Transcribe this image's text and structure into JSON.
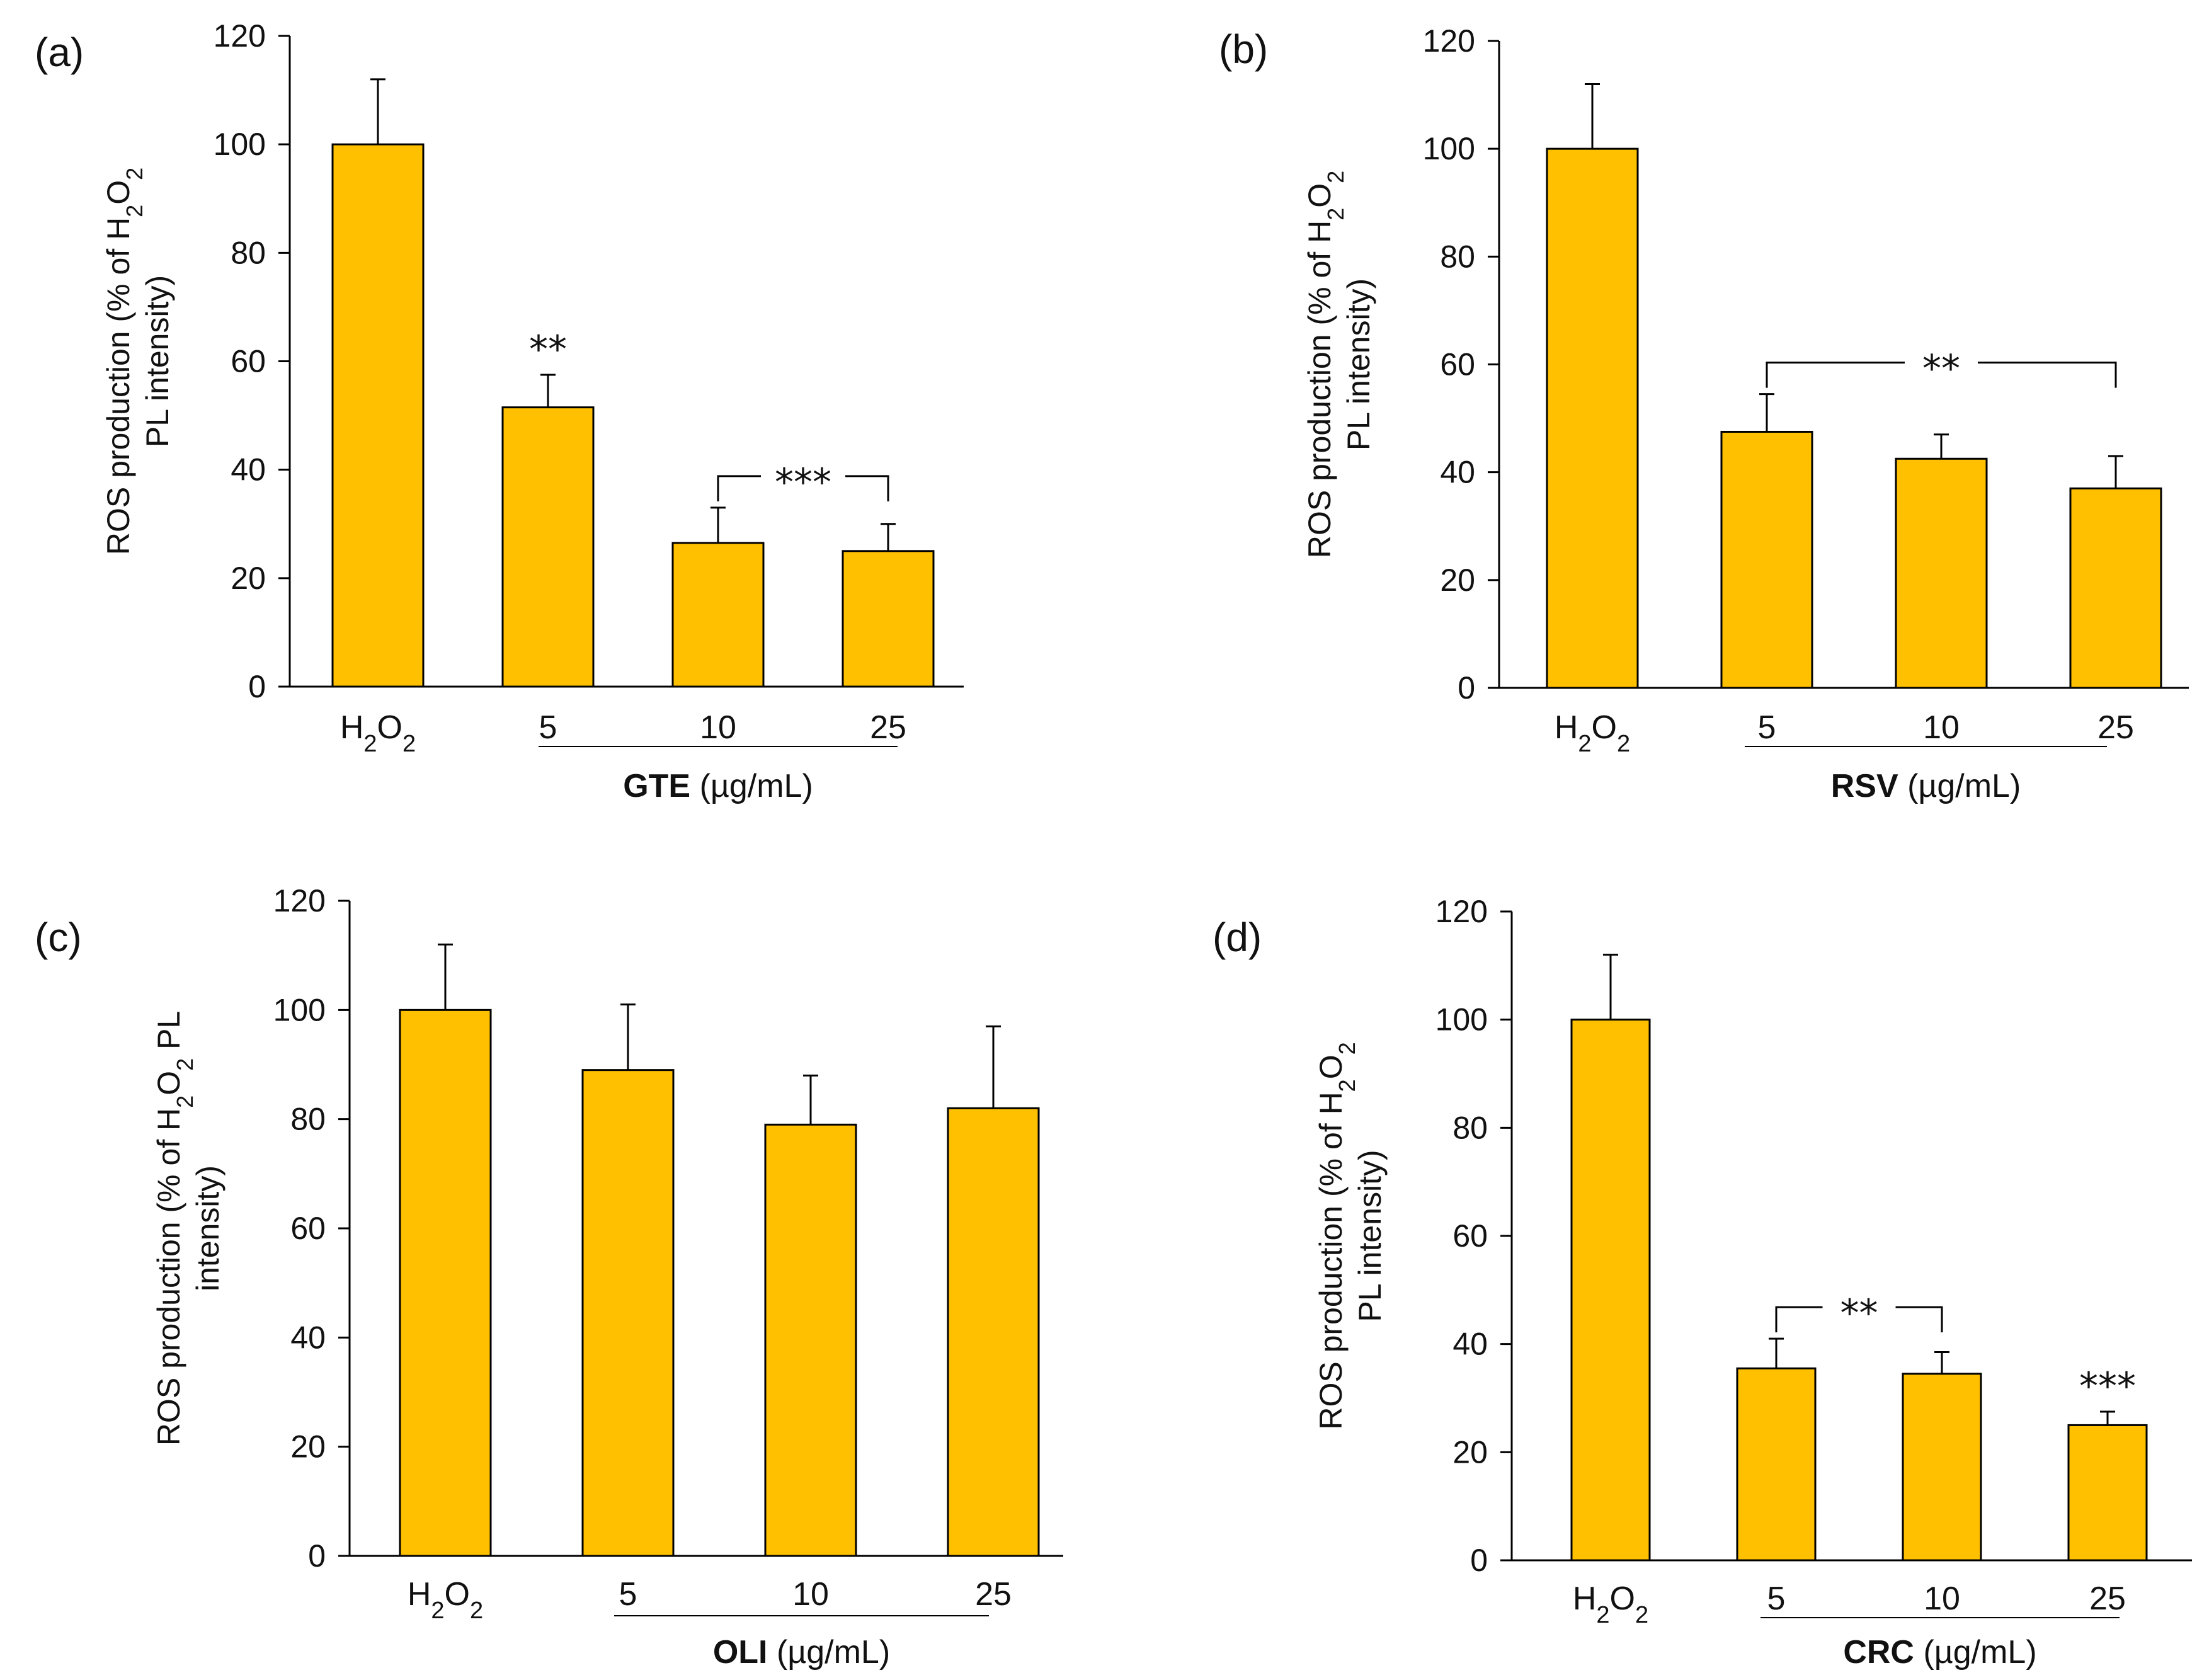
{
  "chart_data": [
    {
      "type": "bar",
      "panel_label": "(a)",
      "title": "",
      "ylabel_line1_pre": "ROS production (% of H",
      "ylabel_line1_sub1": "2",
      "ylabel_line1_mid": "O",
      "ylabel_line1_sub2": "2",
      "ylabel_line2": "PL intensity)",
      "ylim": [
        0,
        120
      ],
      "yticks": [
        "0",
        "20",
        "40",
        "60",
        "80",
        "100",
        "120"
      ],
      "categories": [
        "H2O2",
        "5",
        "10",
        "25"
      ],
      "values": [
        100,
        51.5,
        26.5,
        25
      ],
      "errors": [
        12,
        6,
        6.5,
        5
      ],
      "group_label_bold": "GTE",
      "group_label_unit": " (µg/mL)",
      "annotations": [
        {
          "type": "star",
          "text": "**",
          "bar": 1
        },
        {
          "type": "bracket",
          "text": "***",
          "from": 2,
          "to": 3
        }
      ]
    },
    {
      "type": "bar",
      "panel_label": "(b)",
      "title": "",
      "ylabel_line1_pre": "ROS production (% of H",
      "ylabel_line1_sub1": "2",
      "ylabel_line1_mid": "O",
      "ylabel_line1_sub2": "2",
      "ylabel_line2": "PL intensity)",
      "ylim": [
        0,
        120
      ],
      "yticks": [
        "0",
        "20",
        "40",
        "60",
        "80",
        "100",
        "120"
      ],
      "categories": [
        "H2O2",
        "5",
        "10",
        "25"
      ],
      "values": [
        100,
        47.5,
        42.5,
        37
      ],
      "errors": [
        12,
        7,
        4.5,
        6
      ],
      "group_label_bold": "RSV",
      "group_label_unit": " (µg/mL)",
      "annotations": [
        {
          "type": "bracket",
          "text": "**",
          "from": 1,
          "to": 3
        }
      ]
    },
    {
      "type": "bar",
      "panel_label": "(c)",
      "title": "",
      "ylabel_line1_pre": "ROS production (% of H",
      "ylabel_line1_sub1": "2",
      "ylabel_line1_mid": "O",
      "ylabel_line1_sub2": "2",
      "ylabel_line1_post": " PL",
      "ylabel_line2": "intensity)",
      "ylim": [
        0,
        120
      ],
      "yticks": [
        "0",
        "20",
        "40",
        "60",
        "80",
        "100",
        "120"
      ],
      "categories": [
        "H2O2",
        "5",
        "10",
        "25"
      ],
      "values": [
        100,
        89,
        79,
        82
      ],
      "errors": [
        12,
        12,
        9,
        15
      ],
      "group_label_bold": "OLI",
      "group_label_unit": " (µg/mL)",
      "annotations": []
    },
    {
      "type": "bar",
      "panel_label": "(d)",
      "title": "",
      "ylabel_line1_pre": "ROS production (% of H",
      "ylabel_line1_sub1": "2",
      "ylabel_line1_mid": "O",
      "ylabel_line1_sub2": "2",
      "ylabel_line2": "PL intensity)",
      "ylim": [
        0,
        120
      ],
      "yticks": [
        "0",
        "20",
        "40",
        "60",
        "80",
        "100",
        "120"
      ],
      "categories": [
        "H2O2",
        "5",
        "10",
        "25"
      ],
      "values": [
        100,
        35.5,
        34.5,
        25
      ],
      "errors": [
        12,
        5.5,
        4,
        2.5
      ],
      "group_label_bold": "CRC",
      "group_label_unit": " (µg/mL)",
      "annotations": [
        {
          "type": "bracket",
          "text": "**",
          "from": 1,
          "to": 2
        },
        {
          "type": "star",
          "text": "***",
          "bar": 3
        }
      ]
    }
  ],
  "colors": {
    "bar_fill": "#FFC000",
    "bar_stroke": "#000000",
    "axis": "#000000"
  }
}
